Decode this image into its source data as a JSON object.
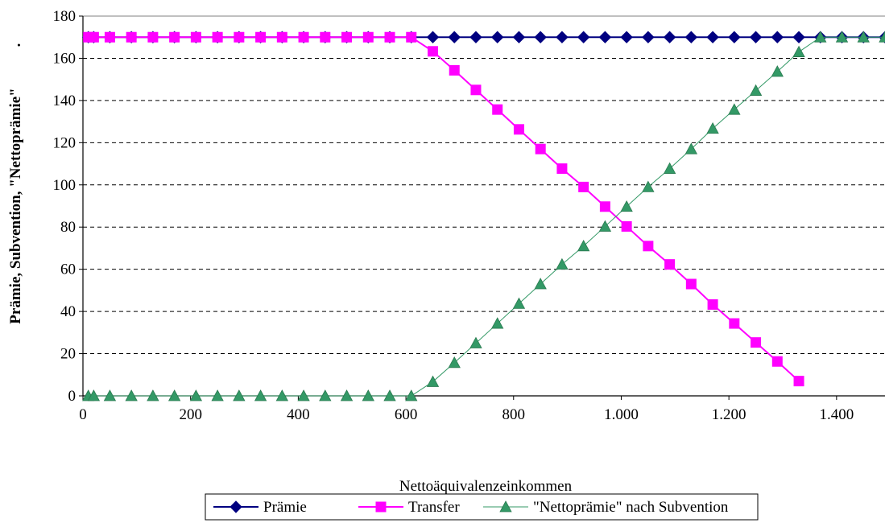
{
  "chart_data": {
    "type": "line",
    "title": "",
    "xlabel": "Nettoäquivalenzeinkommen",
    "ylabel": "Prämie, Subvention, \"Nettoprämie\"",
    "xlim": [
      0,
      1490
    ],
    "ylim": [
      0,
      180
    ],
    "grid": "horizontal dashed",
    "legend_position": "bottom-center",
    "x_ticks": [
      {
        "value": 0,
        "label": "0"
      },
      {
        "value": 200,
        "label": "200"
      },
      {
        "value": 400,
        "label": "400"
      },
      {
        "value": 600,
        "label": "600"
      },
      {
        "value": 800,
        "label": "800"
      },
      {
        "value": 1000,
        "label": "1.000"
      },
      {
        "value": 1200,
        "label": "1.200"
      },
      {
        "value": 1400,
        "label": "1.400"
      }
    ],
    "y_ticks": [
      {
        "value": 0,
        "label": "0"
      },
      {
        "value": 20,
        "label": "20"
      },
      {
        "value": 40,
        "label": "40"
      },
      {
        "value": 60,
        "label": "60"
      },
      {
        "value": 80,
        "label": "80"
      },
      {
        "value": 100,
        "label": "100"
      },
      {
        "value": 120,
        "label": "120"
      },
      {
        "value": 140,
        "label": "140"
      },
      {
        "value": 160,
        "label": "160"
      },
      {
        "value": 180,
        "label": "180"
      }
    ],
    "x": [
      10,
      20,
      50,
      90,
      130,
      170,
      210,
      250,
      290,
      330,
      370,
      410,
      450,
      490,
      530,
      570,
      610,
      650,
      690,
      730,
      770,
      810,
      850,
      890,
      930,
      970,
      1010,
      1050,
      1090,
      1130,
      1170,
      1210,
      1250,
      1290,
      1330,
      1370,
      1410,
      1450,
      1490
    ],
    "series": [
      {
        "name": "Prämie",
        "color": "#000080",
        "marker": "diamond",
        "values": [
          170,
          170,
          170,
          170,
          170,
          170,
          170,
          170,
          170,
          170,
          170,
          170,
          170,
          170,
          170,
          170,
          170,
          170,
          170,
          170,
          170,
          170,
          170,
          170,
          170,
          170,
          170,
          170,
          170,
          170,
          170,
          170,
          170,
          170,
          170,
          170,
          170,
          170,
          170
        ]
      },
      {
        "name": "Transfer",
        "color": "#FF00FF",
        "marker": "square",
        "values": [
          170,
          170,
          170,
          170,
          170,
          170,
          170,
          170,
          170,
          170,
          170,
          170,
          170,
          170,
          170,
          170,
          170,
          163.3,
          154.3,
          145,
          135.7,
          126.3,
          117,
          107.7,
          99,
          89.7,
          80.3,
          71,
          62.3,
          53,
          43.3,
          34.3,
          25.3,
          16.3,
          7,
          null,
          null,
          null,
          null
        ]
      },
      {
        "name": "\"Nettoprämie\" nach Subvention",
        "color": "#339966",
        "marker": "triangle",
        "values": [
          0,
          0,
          0,
          0,
          0,
          0,
          0,
          0,
          0,
          0,
          0,
          0,
          0,
          0,
          0,
          0,
          0,
          6.7,
          15.7,
          25,
          34.3,
          43.7,
          53,
          62.3,
          71,
          80.3,
          89.7,
          99,
          107.7,
          117,
          126.7,
          135.7,
          144.7,
          153.7,
          163,
          170,
          170,
          170,
          170
        ]
      }
    ],
    "annotations": [
      "."
    ]
  }
}
